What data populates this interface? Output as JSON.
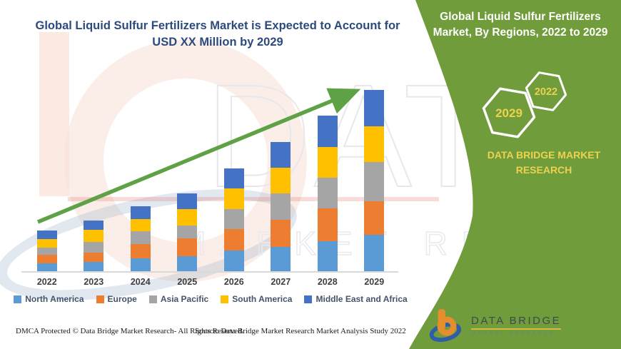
{
  "header": {
    "title": "Global Liquid Sulfur Fertilizers Market is Expected to Account for USD XX Million by 2029",
    "title_color": "#2d4a7d"
  },
  "panel": {
    "title": "Global Liquid Sulfur Fertilizers Market, By Regions, 2022 to 2029",
    "bg_color": "#719c3b",
    "text_color": "#ffffff",
    "accent_color": "#EDD24E",
    "hex_large": "2029",
    "hex_small": "2022",
    "brand": "DATA BRIDGE MARKET RESEARCH"
  },
  "chart_data": {
    "type": "bar",
    "subtype": "stacked-vertical",
    "title": "Global Liquid Sulfur Fertilizers Market is Expected to Account for USD XX Million by 2029",
    "categories": [
      "2022",
      "2023",
      "2024",
      "2025",
      "2026",
      "2027",
      "2028",
      "2029"
    ],
    "series": [
      {
        "name": "North America",
        "color": "#5B9BD5",
        "values": [
          11,
          13,
          18,
          21,
          29,
          34,
          42,
          51
        ]
      },
      {
        "name": "Europe",
        "color": "#ED7D31",
        "values": [
          12,
          13,
          20,
          25,
          30,
          38,
          46,
          47
        ]
      },
      {
        "name": "Asia Pacific",
        "color": "#A5A5A5",
        "values": [
          10,
          15,
          18,
          18,
          28,
          37,
          43,
          55
        ]
      },
      {
        "name": "South America",
        "color": "#FFC000",
        "values": [
          12,
          17,
          17,
          23,
          29,
          36,
          43,
          50
        ]
      },
      {
        "name": "Middle East and Africa",
        "color": "#4472C4",
        "values": [
          12,
          13,
          18,
          22,
          28,
          36,
          44,
          51
        ]
      }
    ],
    "stack_totals": [
      57,
      71,
      91,
      109,
      144,
      181,
      218,
      254
    ],
    "unit": "relative height in px; values unlabeled (USD XX Million)",
    "xlabel": "",
    "ylabel": "",
    "grid": false,
    "y_axis_shown": false,
    "legend_position": "bottom",
    "trend_arrow": {
      "from": [
        53,
        311
      ],
      "to": [
        490,
        131
      ],
      "color": "#5fa245"
    }
  },
  "footer": {
    "left": "DMCA Protected © Data Bridge Market Research- All Rights Reserved.",
    "source": "Source: Data Bridge Market Research Market Analysis Study 2022"
  },
  "logo": {
    "name": "DATA BRIDGE",
    "subtitle": "MARKET RESEARCH"
  },
  "watermark": {
    "line1": "DATA BRIDGE",
    "line2": "MARKET RESEARCH"
  }
}
